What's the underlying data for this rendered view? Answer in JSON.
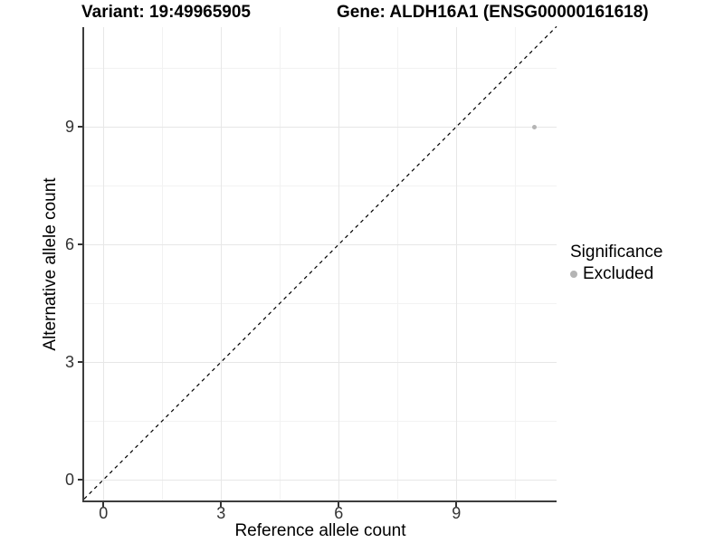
{
  "header": {
    "variant_title": "Variant: 19:49965905",
    "gene_title": "Gene: ALDH16A1 (ENSG00000161618)"
  },
  "axes": {
    "x_title": "Reference allele count",
    "y_title": "Alternative allele count"
  },
  "legend": {
    "title": "Significance",
    "items": [
      {
        "label": "Excluded",
        "color": "#b4b4b4"
      }
    ]
  },
  "chart_data": {
    "type": "scatter",
    "title": "Variant: 19:49965905 / Gene: ALDH16A1 (ENSG00000161618)",
    "xlabel": "Reference allele count",
    "ylabel": "Alternative allele count",
    "x_ticks": [
      0,
      3,
      6,
      9
    ],
    "y_ticks": [
      0,
      3,
      6,
      9
    ],
    "xlim": [
      -0.55,
      11.55
    ],
    "ylim": [
      -0.55,
      11.55
    ],
    "grid": {
      "major": [
        0,
        3,
        6,
        9
      ],
      "minor": [
        1.5,
        4.5,
        7.5,
        10.5
      ],
      "major_color": "#e7e7e7",
      "minor_color": "#f2f2f2"
    },
    "legend_position": "right",
    "reference_line": {
      "kind": "identity y=x",
      "style": "dashed",
      "color": "#000000"
    },
    "series": [
      {
        "name": "Excluded",
        "color": "#b4b4b4",
        "points": [
          {
            "x": 11,
            "y": 9
          }
        ]
      }
    ]
  }
}
